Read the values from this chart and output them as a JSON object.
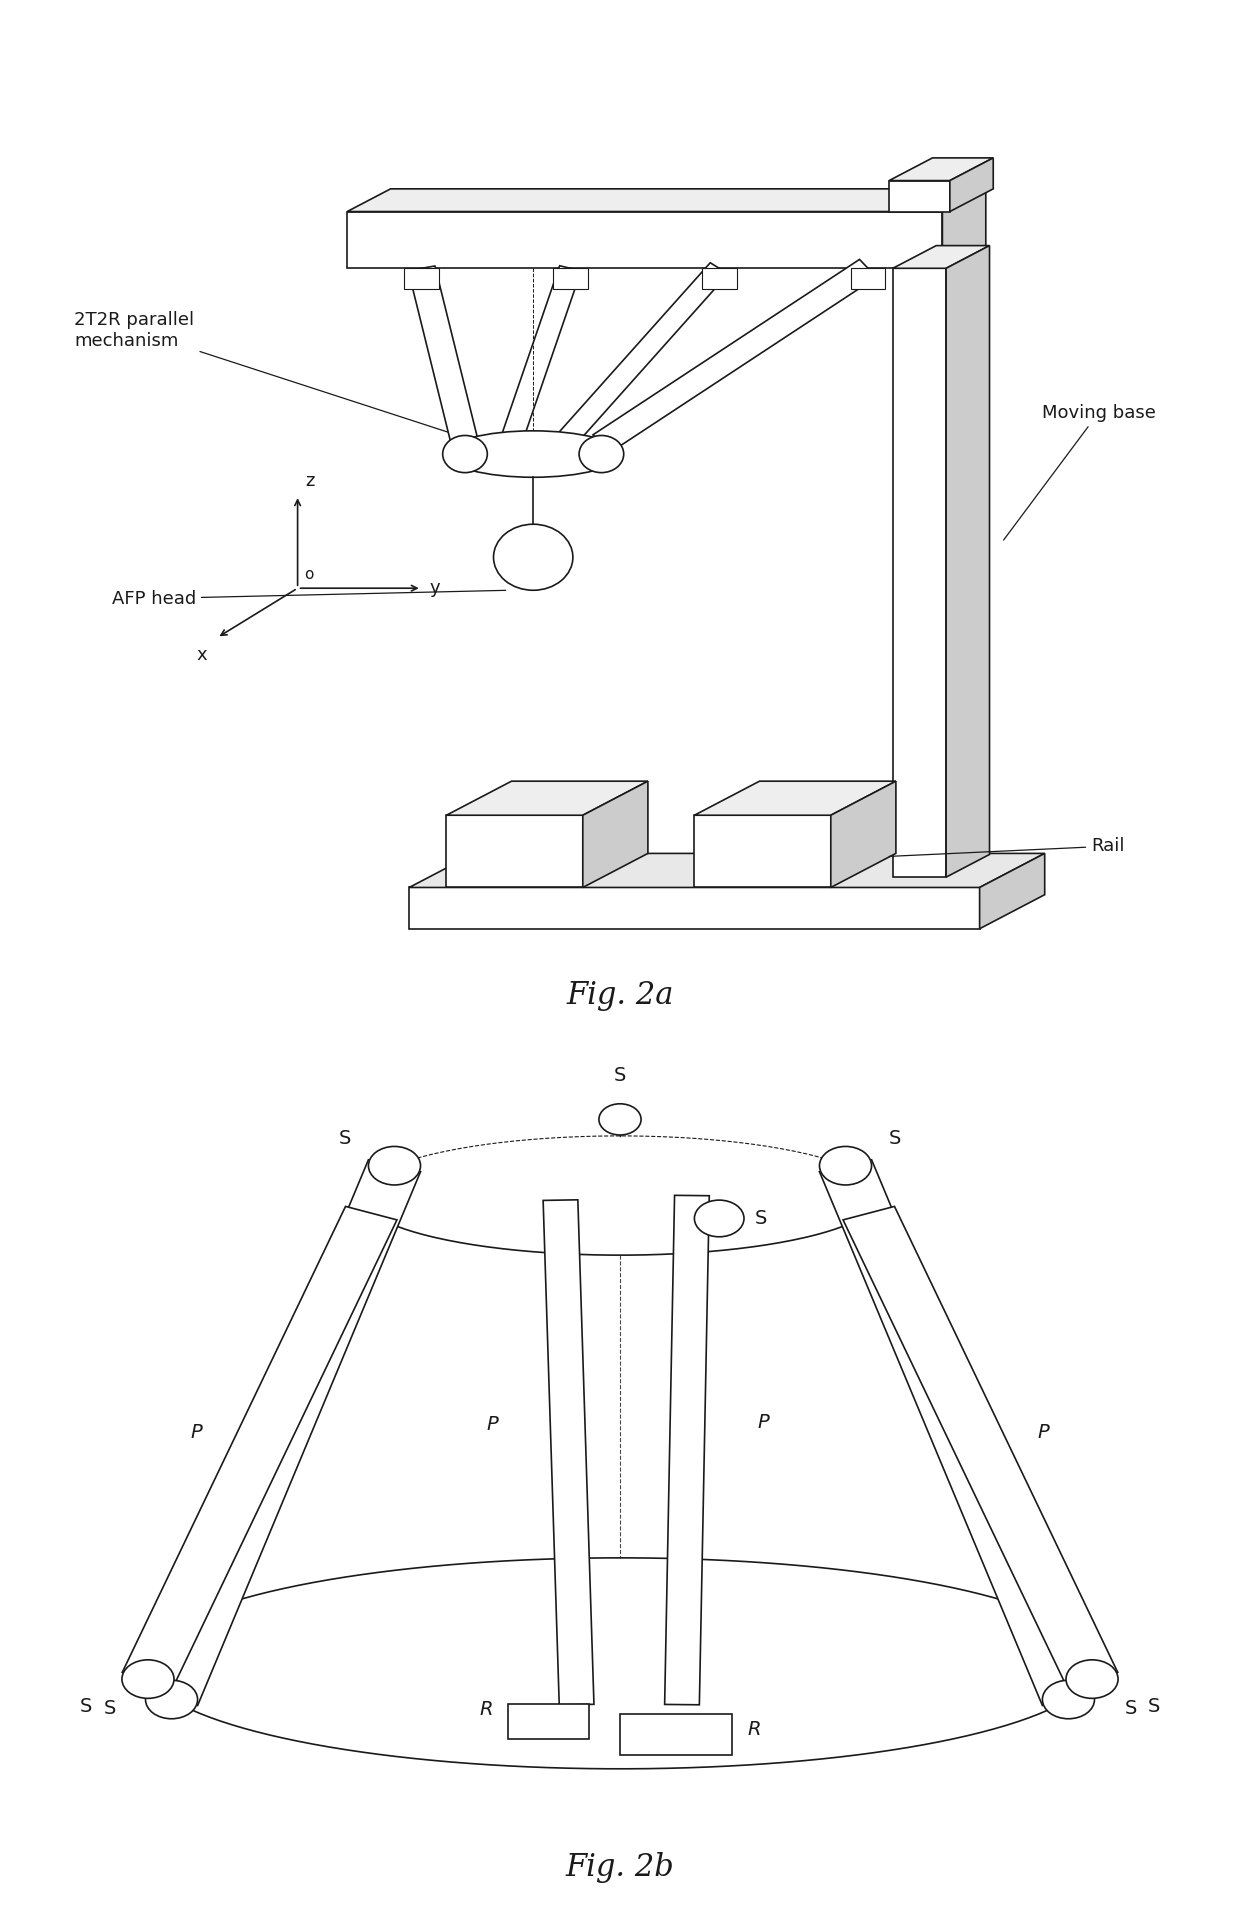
{
  "fig_width": 12.4,
  "fig_height": 19.11,
  "bg_color": "#ffffff",
  "line_color": "#1a1a1a",
  "lw": 1.2,
  "fig2a_label": "Fig. 2a",
  "fig2b_label": "Fig. 2b",
  "label_2T2R": "2T2R parallel\nmechanism",
  "label_AFP": "AFP head",
  "label_Moving": "Moving base",
  "label_Rail": "Rail",
  "font_labels": 13,
  "font_fig": 22,
  "font_joint": 14
}
